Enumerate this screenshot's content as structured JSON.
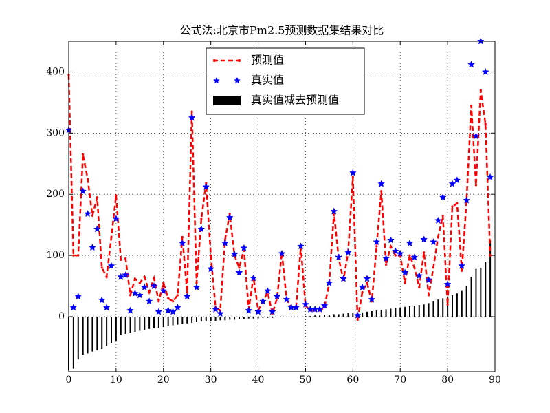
{
  "chart_data": {
    "type": "line",
    "title": "公式法:北京市Pm2.5预测数据集结果对比",
    "xlim": [
      0,
      90
    ],
    "xticks": [
      0,
      10,
      20,
      30,
      40,
      50,
      60,
      70,
      80,
      90
    ],
    "ylim": [
      -90,
      450
    ],
    "yticks": [
      0,
      100,
      200,
      300,
      400
    ],
    "grid": true,
    "legend": "upper center",
    "series": [
      {
        "name": "预测值",
        "type": "line",
        "color": "#ff0000",
        "values": [
          395,
          100,
          100,
          265,
          225,
          165,
          195,
          80,
          65,
          130,
          198,
          93,
          95,
          35,
          62,
          55,
          65,
          40,
          63,
          25,
          55,
          30,
          25,
          35,
          130,
          40,
          335,
          55,
          160,
          218,
          100,
          15,
          10,
          125,
          168,
          100,
          80,
          110,
          12,
          65,
          10,
          25,
          40,
          5,
          30,
          105,
          28,
          15,
          15,
          115,
          18,
          10,
          10,
          10,
          15,
          55,
          170,
          95,
          60,
          105,
          228,
          -5,
          40,
          55,
          25,
          115,
          205,
          85,
          115,
          100,
          100,
          55,
          100,
          80,
          48,
          105,
          35,
          80,
          130,
          165,
          20,
          180,
          185,
          75,
          190,
          345,
          215,
          370,
          315,
          100
        ]
      },
      {
        "name": "真实值",
        "type": "scatter",
        "color": "#0000ff",
        "values": [
          305,
          15,
          33,
          205,
          168,
          113,
          143,
          27,
          15,
          83,
          160,
          65,
          68,
          10,
          38,
          35,
          48,
          25,
          50,
          8,
          42,
          10,
          8,
          15,
          120,
          33,
          325,
          48,
          143,
          212,
          78,
          12,
          5,
          120,
          162,
          102,
          72,
          112,
          10,
          63,
          8,
          25,
          42,
          8,
          33,
          103,
          28,
          15,
          15,
          115,
          20,
          12,
          12,
          12,
          18,
          55,
          172,
          97,
          62,
          105,
          235,
          2,
          48,
          62,
          28,
          122,
          217,
          95,
          125,
          107,
          103,
          72,
          120,
          97,
          67,
          126,
          60,
          122,
          157,
          195,
          53,
          217,
          223,
          83,
          190,
          412,
          295,
          450,
          400,
          228
        ]
      },
      {
        "name": "真实值减去预测值",
        "type": "bar",
        "color": "#000000",
        "values": [
          -88,
          -85,
          -70,
          -63,
          -60,
          -57,
          -55,
          -53,
          -48,
          -43,
          -40,
          -30,
          -28,
          -27,
          -25,
          -23,
          -22,
          -20,
          -19,
          -18,
          -17,
          -15,
          -14,
          -13,
          -12,
          -11,
          -10,
          -9,
          -8,
          -8,
          -7,
          -7,
          -6,
          -6,
          -5,
          -5,
          -4,
          -4,
          -3,
          -3,
          -3,
          -2,
          -2,
          -2,
          -1,
          -1,
          -1,
          0,
          0,
          0,
          1,
          1,
          2,
          2,
          3,
          3,
          4,
          4,
          5,
          6,
          6,
          7,
          7,
          8,
          9,
          10,
          11,
          12,
          13,
          14,
          15,
          16,
          17,
          18,
          19,
          20,
          22,
          25,
          28,
          30,
          33,
          35,
          38,
          42,
          50,
          65,
          78,
          80,
          90,
          125
        ]
      }
    ]
  }
}
